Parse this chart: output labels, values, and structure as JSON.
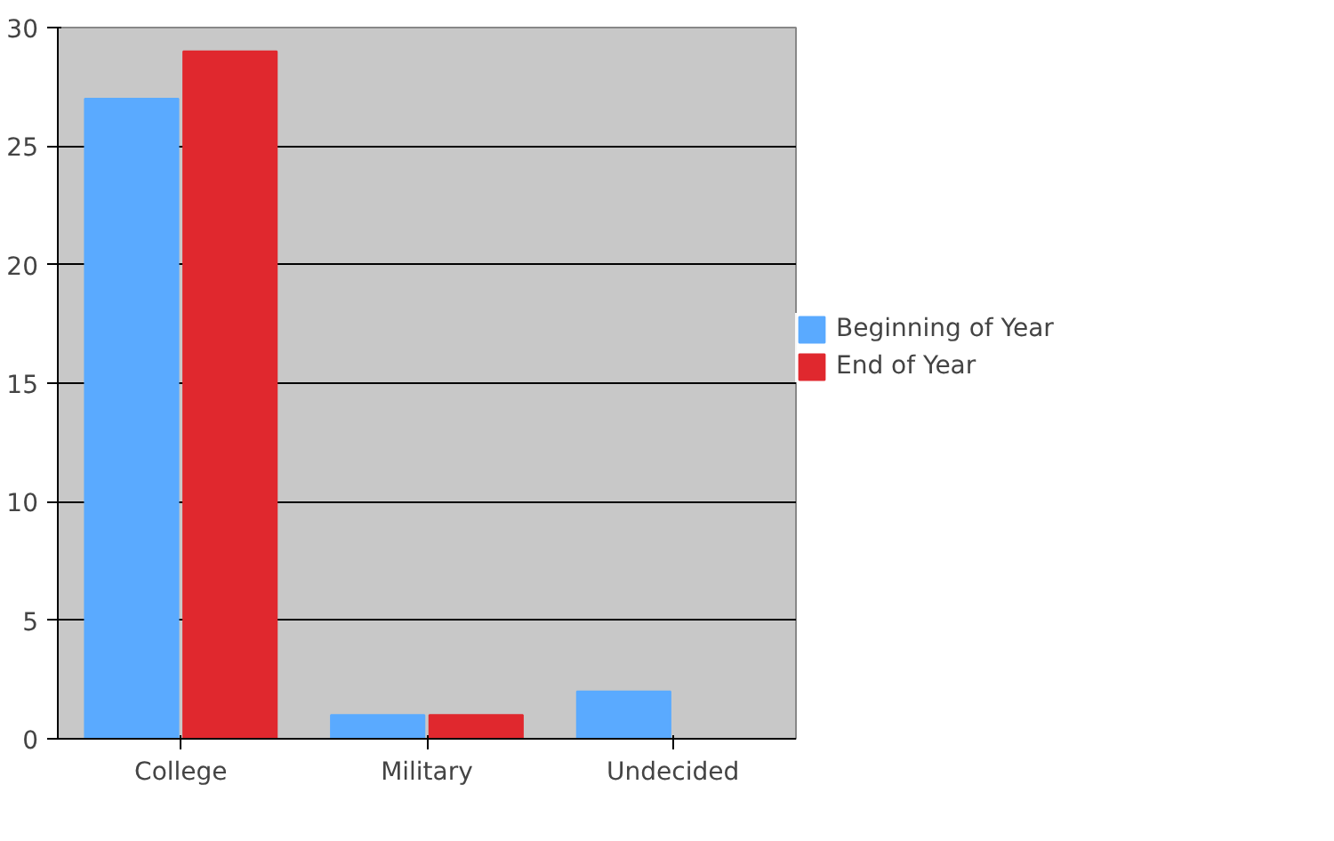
{
  "chart_data": {
    "type": "bar",
    "categories": [
      "College",
      "Military",
      "Undecided"
    ],
    "series": [
      {
        "name": "Beginning of Year",
        "color": "#5aaaff",
        "values": [
          27,
          1,
          2
        ]
      },
      {
        "name": "End of Year",
        "color": "#e0282e",
        "values": [
          29,
          1,
          0
        ]
      }
    ],
    "ylim": [
      0,
      30
    ],
    "yticks": [
      0,
      5,
      10,
      15,
      20,
      25,
      30
    ],
    "grid": "y",
    "legend": "right"
  }
}
